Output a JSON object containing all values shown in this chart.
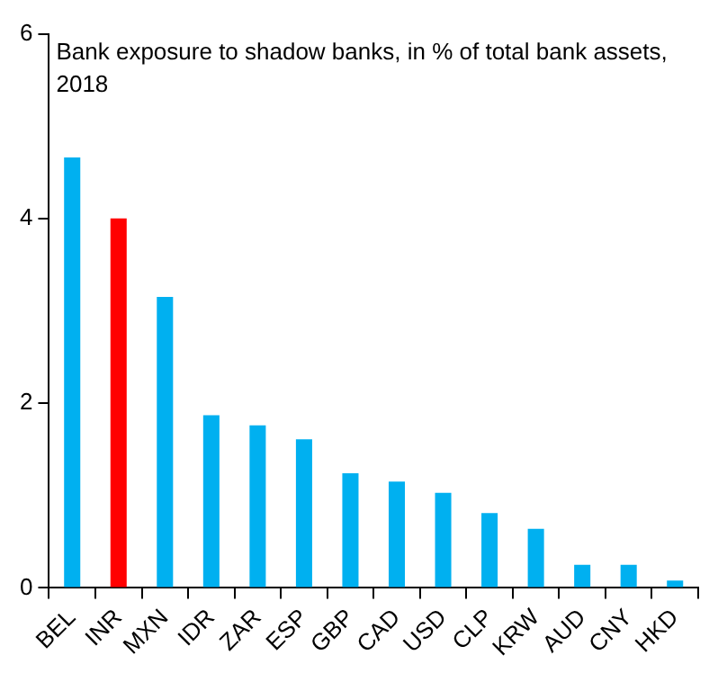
{
  "chart_data": {
    "type": "bar",
    "title": "Bank exposure to shadow banks, in % of total bank assets, 2018",
    "categories": [
      "BEL",
      "INR",
      "MXN",
      "IDR",
      "ZAR",
      "ESP",
      "GBP",
      "CAD",
      "USD",
      "CLP",
      "KRW",
      "AUD",
      "CNY",
      "HKD"
    ],
    "values": [
      4.66,
      4.0,
      3.15,
      1.87,
      1.76,
      1.61,
      1.24,
      1.15,
      1.03,
      0.81,
      0.64,
      0.25,
      0.25,
      0.08
    ],
    "colors": [
      "#00b0f0",
      "#ff0000",
      "#00b0f0",
      "#00b0f0",
      "#00b0f0",
      "#00b0f0",
      "#00b0f0",
      "#00b0f0",
      "#00b0f0",
      "#00b0f0",
      "#00b0f0",
      "#00b0f0",
      "#00b0f0",
      "#00b0f0"
    ],
    "ylim": [
      0,
      6
    ],
    "yticks": [
      0,
      2,
      4,
      6
    ],
    "grid": false,
    "legend": false
  }
}
